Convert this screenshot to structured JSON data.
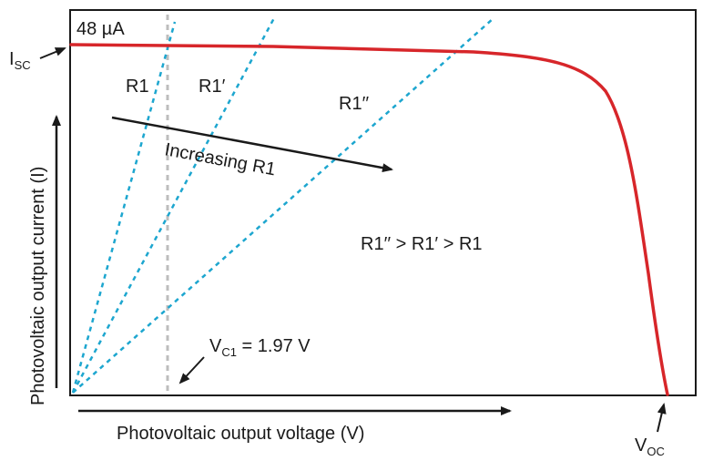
{
  "diagram": {
    "current_label": "48 µA",
    "isc_main": "I",
    "isc_sub": "SC",
    "voc_main": "V",
    "voc_sub": "OC",
    "vc1_main": "V",
    "vc1_sub": "C1",
    "vc1_value": " = 1.97 V",
    "r1": "R1",
    "r1_prime": "R1′",
    "r1_double_prime": "R1′′",
    "increasing_label": "Increasing R1",
    "inequality": "R1′′ > R1′ > R1",
    "x_axis_label": "Photovoltaic output voltage (V)",
    "y_axis_label": "Photovoltaic output current (I)"
  },
  "colors": {
    "iv_curve": "#d7262a",
    "load_lines": "#1da6cf",
    "vc1_line": "#bdbdbd",
    "ink": "#1a1a1a"
  }
}
